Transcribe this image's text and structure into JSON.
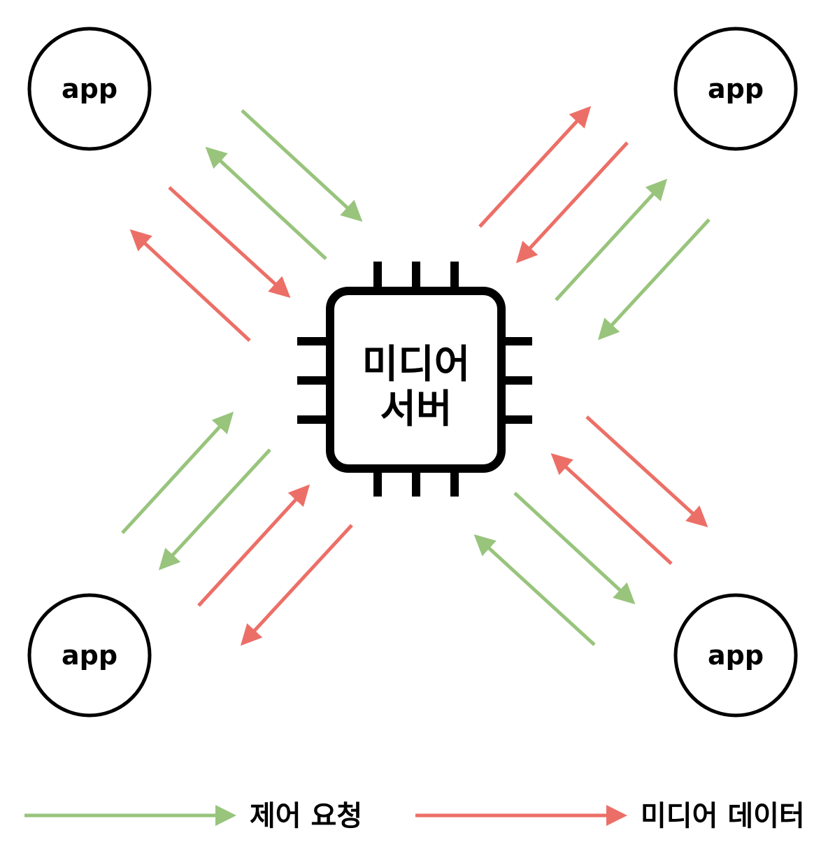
{
  "nodes": [
    {
      "label": "app",
      "position": "top-left"
    },
    {
      "label": "app",
      "position": "top-right"
    },
    {
      "label": "app",
      "position": "bottom-left"
    },
    {
      "label": "app",
      "position": "bottom-right"
    }
  ],
  "server": {
    "label_line1": "미디어",
    "label_line2": "서버",
    "icon": "chip-icon"
  },
  "colors": {
    "control": "#98c47c",
    "media": "#ec6f67"
  },
  "legend": {
    "control_label": "제어 요청",
    "media_label": "미디어 데이터"
  }
}
